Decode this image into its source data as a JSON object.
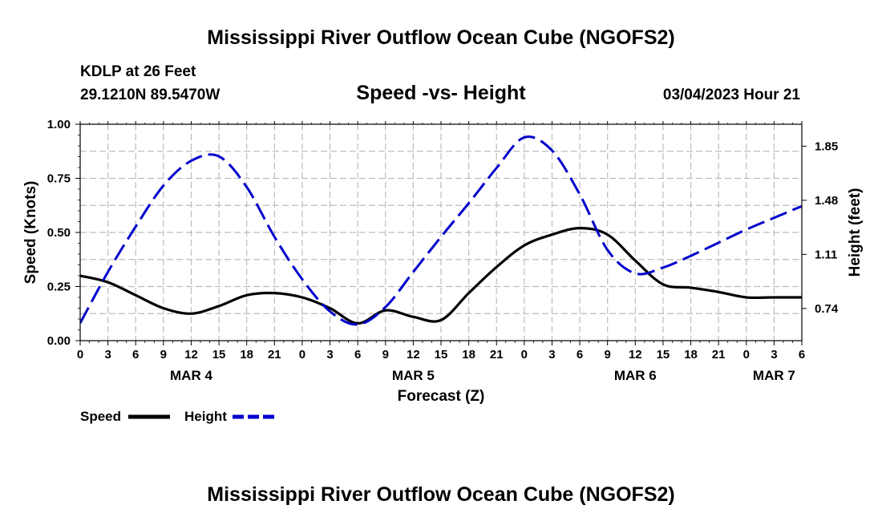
{
  "chart_data": {
    "type": "line",
    "title": "Mississippi River Outflow Ocean Cube (NGOFS2)",
    "footer_title": "Mississippi River Outflow Ocean Cube (NGOFS2)",
    "station": "KDLP at 26 Feet",
    "location": "29.1210N  89.5470W",
    "subtitle": "Speed -vs- Height",
    "timestamp": "03/04/2023 Hour 21",
    "xlabel": "Forecast (Z)",
    "ylabel_left": "Speed (Knots)",
    "ylabel_right": "Height (feet)",
    "xlim": [
      0,
      78
    ],
    "ylim_left": [
      0,
      1.0
    ],
    "ylim_right": [
      0.52,
      2.0
    ],
    "x_ticks": [
      0,
      3,
      6,
      9,
      12,
      15,
      18,
      21,
      24,
      27,
      30,
      33,
      36,
      39,
      42,
      45,
      48,
      51,
      54,
      57,
      60,
      63,
      66,
      69,
      72,
      75,
      78
    ],
    "x_tick_labels": [
      "0",
      "3",
      "6",
      "9",
      "12",
      "15",
      "18",
      "21",
      "0",
      "3",
      "6",
      "9",
      "12",
      "15",
      "18",
      "21",
      "0",
      "3",
      "6",
      "9",
      "12",
      "15",
      "18",
      "21",
      "0",
      "3",
      "6"
    ],
    "date_labels": [
      {
        "x": 12,
        "label": "MAR 4"
      },
      {
        "x": 36,
        "label": "MAR 5"
      },
      {
        "x": 60,
        "label": "MAR 6"
      },
      {
        "x": 75,
        "label": "MAR 7"
      }
    ],
    "left_ticks": [
      0.0,
      0.25,
      0.5,
      0.75,
      1.0
    ],
    "left_tick_labels": [
      "0.00",
      "0.25",
      "0.50",
      "0.75",
      "1.00"
    ],
    "right_ticks": [
      0.74,
      1.11,
      1.48,
      1.85
    ],
    "right_tick_labels": [
      "0.74",
      "1.11",
      "1.48",
      "1.85"
    ],
    "grid": true,
    "legend_position": "bottom-left",
    "series": [
      {
        "name": "Speed",
        "axis": "left",
        "color": "#000000",
        "style": "solid",
        "x": [
          0,
          3,
          6,
          9,
          12,
          15,
          18,
          21,
          24,
          27,
          30,
          33,
          36,
          39,
          42,
          45,
          48,
          51,
          54,
          57,
          60,
          63,
          66,
          69,
          72,
          75,
          78
        ],
        "values": [
          0.3,
          0.27,
          0.21,
          0.15,
          0.125,
          0.16,
          0.21,
          0.22,
          0.2,
          0.15,
          0.08,
          0.14,
          0.11,
          0.095,
          0.22,
          0.34,
          0.44,
          0.49,
          0.52,
          0.49,
          0.37,
          0.26,
          0.245,
          0.225,
          0.2,
          0.2,
          0.2
        ]
      },
      {
        "name": "Height",
        "axis": "right",
        "color": "#0000cc",
        "style": "dashed",
        "x": [
          0,
          3,
          6,
          9,
          12,
          15,
          18,
          21,
          24,
          27,
          30,
          33,
          36,
          39,
          42,
          45,
          48,
          51,
          54,
          57,
          60,
          63,
          66,
          69,
          72,
          75,
          78
        ],
        "values": [
          0.64,
          0.99,
          1.3,
          1.58,
          1.75,
          1.78,
          1.57,
          1.23,
          0.94,
          0.72,
          0.63,
          0.75,
          0.99,
          1.23,
          1.46,
          1.7,
          1.91,
          1.82,
          1.52,
          1.14,
          0.98,
          1.02,
          1.1,
          1.19,
          1.28,
          1.36,
          1.44
        ]
      }
    ],
    "legend": [
      {
        "label": "Speed",
        "color": "#000000",
        "style": "solid"
      },
      {
        "label": "Height",
        "color": "#0000cc",
        "style": "dashed"
      }
    ]
  }
}
